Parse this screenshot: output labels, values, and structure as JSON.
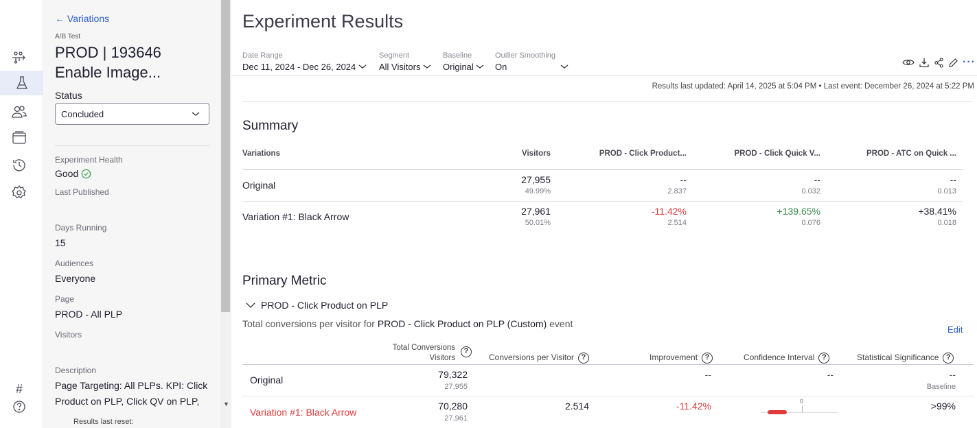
{
  "sidebar": {
    "back_label": "Variations",
    "type_label": "A/B Test",
    "title_line1": "PROD | 193646",
    "title_line2": "Enable Image...",
    "status_label": "Status",
    "status_value": "Concluded",
    "health_label": "Experiment Health",
    "health_value": "Good",
    "published_label": "Last Published",
    "days_label": "Days Running",
    "days_value": "15",
    "audiences_label": "Audiences",
    "audiences_value": "Everyone",
    "page_label": "Page",
    "page_value": "PROD - All PLP",
    "visitors_label": "Visitors",
    "description_label": "Description",
    "description_line1": "Page Targeting: All PLPs. KPI: Click",
    "description_line2": "Product on PLP, Click QV on PLP,",
    "reset_label": "Results last reset:"
  },
  "header": {
    "title": "Experiment Results",
    "filters": {
      "date_label": "Date Range",
      "date_value": "Dec 11, 2024 - Dec 26, 2024",
      "segment_label": "Segment",
      "segment_value": "All Visitors",
      "baseline_label": "Baseline",
      "baseline_value": "Original",
      "outlier_label": "Outlier Smoothing",
      "outlier_value": "On"
    },
    "updated_text": "Results last updated: April 14, 2025 at 5:04 PM • Last event: December 26, 2024 at 5:22 PM"
  },
  "summary": {
    "title": "Summary",
    "columns": [
      "Variations",
      "Visitors",
      "PROD - Click Product...",
      "PROD - Click Quick V...",
      "PROD - ATC on Quick ..."
    ],
    "rows": [
      {
        "name": "Original",
        "visitors": "27,955",
        "visitors_pct": "49.99%",
        "m1": "--",
        "m1_sub": "2.837",
        "m2": "--",
        "m2_sub": "0.032",
        "m3": "--",
        "m3_sub": "0.013"
      },
      {
        "name": "Variation #1: Black Arrow",
        "visitors": "27,961",
        "visitors_pct": "50.01%",
        "m1": "-11.42%",
        "m1_sub": "2.514",
        "m2": "+139.65%",
        "m2_sub": "0.076",
        "m3": "+38.41%",
        "m3_sub": "0.018"
      }
    ]
  },
  "primary": {
    "title": "Primary Metric",
    "metric_name": "PROD - Click Product on PLP",
    "desc_prefix": "Total conversions per visitor for ",
    "desc_bold": "PROD - Click Product on PLP (Custom)",
    "desc_suffix": " event",
    "edit_label": "Edit",
    "columns": {
      "total_conv": "Total Conversions",
      "visitors": "Visitors",
      "cpv": "Conversions per Visitor",
      "improvement": "Improvement",
      "ci": "Confidence Interval",
      "sig": "Statistical Significance"
    },
    "rows": [
      {
        "name": "Original",
        "conversions": "79,322",
        "visitors": "27,955",
        "cpv": "",
        "improvement": "--",
        "ci": "--",
        "sig": "--",
        "sig_sub": "Baseline"
      },
      {
        "name": "Variation #1: Black Arrow",
        "conversions": "70,280",
        "visitors": "27,961",
        "cpv": "2.514",
        "improvement": "-11.42%",
        "ci_zero": "0",
        "sig": ">99%"
      }
    ]
  },
  "colors": {
    "accent": "#2f5fcf",
    "negative": "#e03a3a",
    "positive": "#3a8a4a"
  }
}
